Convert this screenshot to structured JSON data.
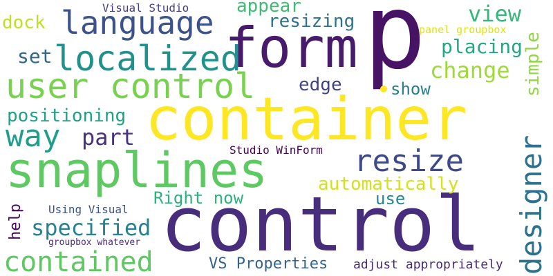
{
  "words": [
    {
      "text": "p",
      "color": "#471365"
    },
    {
      "text": "container",
      "color": "#fde725"
    },
    {
      "text": "control",
      "color": "#472d7b"
    },
    {
      "text": "snaplines",
      "color": "#5ec962"
    },
    {
      "text": "form",
      "color": "#481a6c"
    },
    {
      "text": "user control",
      "color": "#7ad151"
    },
    {
      "text": "language",
      "color": "#3b528b"
    },
    {
      "text": "localized",
      "color": "#21918c"
    },
    {
      "text": "designer",
      "color": "#2c728e"
    },
    {
      "text": "resize",
      "color": "#3e4989"
    },
    {
      "text": "way",
      "color": "#1f9e89"
    },
    {
      "text": "contained",
      "color": "#5ec962"
    },
    {
      "text": "view",
      "color": "#35b779"
    },
    {
      "text": "change",
      "color": "#a0da39"
    },
    {
      "text": "specified",
      "color": "#26828e"
    },
    {
      "text": "placing",
      "color": "#22a884"
    },
    {
      "text": "set",
      "color": "#30678d"
    },
    {
      "text": "part",
      "color": "#46327e"
    },
    {
      "text": "positioning",
      "color": "#1fa187"
    },
    {
      "text": "appear",
      "color": "#3fbc73"
    },
    {
      "text": "resizing",
      "color": "#2c738e"
    },
    {
      "text": "dock",
      "color": "#c2df23"
    },
    {
      "text": "simple",
      "color": "#90d743"
    },
    {
      "text": "automatically",
      "color": "#d2e21b"
    },
    {
      "text": "edge",
      "color": "#414487"
    },
    {
      "text": "show",
      "color": "#297b8e"
    },
    {
      "text": "Right now",
      "color": "#2db27d"
    },
    {
      "text": "use",
      "color": "#24878e"
    },
    {
      "text": "VS Properties",
      "color": "#33638d"
    },
    {
      "text": "adjust appropriately",
      "color": "#482878"
    },
    {
      "text": "help",
      "color": "#46085c"
    },
    {
      "text": "Visual Studio",
      "color": "#433e85"
    },
    {
      "text": "panel groupbox",
      "color": "#dde318"
    },
    {
      "text": "Studio WinForm",
      "color": "#440154"
    },
    {
      "text": "Using Visual",
      "color": "#3b528b"
    },
    {
      "text": "groupbox whatever",
      "color": "#472a7a"
    }
  ],
  "dot": {
    "color": "#fde725"
  }
}
